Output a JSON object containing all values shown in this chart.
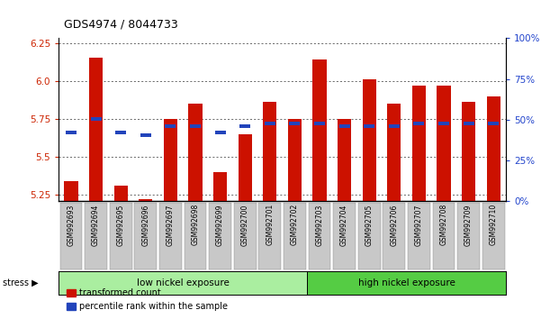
{
  "title": "GDS4974 / 8044733",
  "samples": [
    "GSM992693",
    "GSM992694",
    "GSM992695",
    "GSM992696",
    "GSM992697",
    "GSM992698",
    "GSM992699",
    "GSM992700",
    "GSM992701",
    "GSM992702",
    "GSM992703",
    "GSM992704",
    "GSM992705",
    "GSM992706",
    "GSM992707",
    "GSM992708",
    "GSM992709",
    "GSM992710"
  ],
  "red_values": [
    5.34,
    6.15,
    5.31,
    5.22,
    5.75,
    5.85,
    5.4,
    5.65,
    5.86,
    5.75,
    6.14,
    5.75,
    6.01,
    5.85,
    5.97,
    5.97,
    5.86,
    5.9
  ],
  "blue_values": [
    5.66,
    5.75,
    5.66,
    5.64,
    5.7,
    5.7,
    5.66,
    5.7,
    5.72,
    5.72,
    5.72,
    5.7,
    5.7,
    5.7,
    5.72,
    5.72,
    5.72,
    5.72
  ],
  "ymin": 5.21,
  "ymax": 6.28,
  "yticks": [
    5.25,
    5.5,
    5.75,
    6.0,
    6.25
  ],
  "right_yticks": [
    0,
    25,
    50,
    75,
    100
  ],
  "right_ytick_labels": [
    "0%",
    "25%",
    "50%",
    "75%",
    "100%"
  ],
  "group1_label": "low nickel exposure",
  "group2_label": "high nickel exposure",
  "group1_count": 10,
  "stress_label": "stress",
  "bar_color": "#cc1100",
  "blue_color": "#2244bb",
  "group1_color": "#aaeea0",
  "group2_color": "#55cc44",
  "bg_color": "#ffffff",
  "label_color_red": "#cc2200",
  "label_color_blue": "#2244cc",
  "grid_color": "#333333",
  "bar_bottom": 5.21,
  "tick_bg_color": "#c8c8c8",
  "legend_red_label": "transformed count",
  "legend_blue_label": "percentile rank within the sample"
}
